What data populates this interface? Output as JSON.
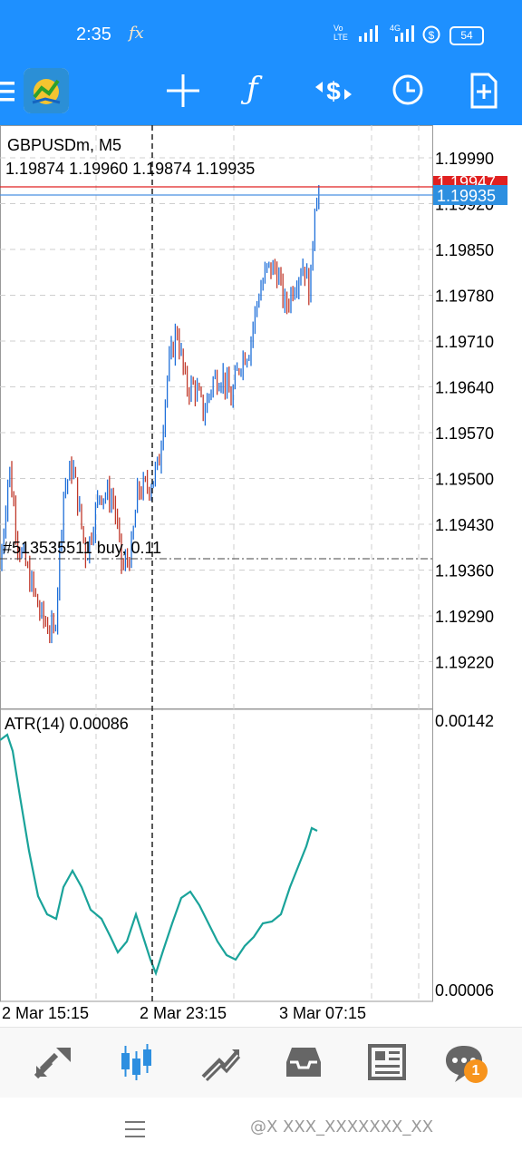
{
  "status_bar": {
    "time": "2:35",
    "notification_icon": "fx",
    "volte": "Vo\nLTE",
    "network": "4G",
    "battery": "54"
  },
  "toolbar": {
    "items": [
      "menu-icon",
      "app-logo",
      "crosshair-icon",
      "function-icon",
      "trade-icon",
      "clock-icon",
      "new-document-icon"
    ]
  },
  "chart": {
    "symbol": "GBPUSDm, M5",
    "ohlc": "1.19874 1.19960 1.19874 1.19935",
    "price_ticks": [
      "1.19990",
      "1.19920",
      "1.19850",
      "1.19780",
      "1.19710",
      "1.19640",
      "1.19570",
      "1.19500",
      "1.19430",
      "1.19360",
      "1.19290",
      "1.19220"
    ],
    "ask_label": "1.19947",
    "bid_label": "1.19935",
    "order_label": "#513535511 buy, 0.11",
    "indicator_label": "ATR(14) 0.00086",
    "indicator_ticks": [
      "0.00142",
      "0.00006"
    ],
    "time_ticks": [
      "2 Mar 15:15",
      "2 Mar 23:15",
      "3 Mar 07:15"
    ],
    "colors": {
      "bull": "#1e6fd9",
      "bear": "#c0392b",
      "ask_line": "#e02020",
      "bid_line": "#4a90e2",
      "atr": "#1aa39a"
    }
  },
  "bottom_nav": {
    "items": [
      "quotes-icon",
      "chart-icon",
      "trade-icon",
      "history-icon",
      "news-icon",
      "messages-icon"
    ],
    "active": "chart-icon",
    "messages_badge": "1"
  },
  "system_nav": {
    "menu_icon": "menu-icon"
  },
  "watermark": "@X XXX_XXXXXXX_XX"
}
